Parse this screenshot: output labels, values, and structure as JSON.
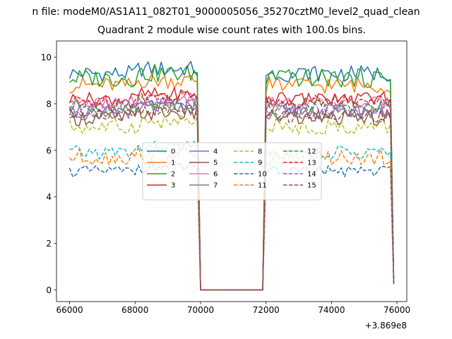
{
  "figure": {
    "suptitle": "n file: modeM0/AS1A11_082T01_9000005056_35270cztM0_level2_quad_clean"
  },
  "chart_data": {
    "type": "line",
    "title": "Quadrant 2 module wise count rates with 100.0s bins.",
    "xlabel": "",
    "ylabel": "",
    "x_offset_label": "+3.869e8",
    "xlim": [
      65600,
      76300
    ],
    "ylim": [
      -0.5,
      10.7
    ],
    "xticks": [
      66000,
      68000,
      70000,
      72000,
      74000,
      76000
    ],
    "xtick_labels": [
      "66000",
      "68000",
      "70000",
      "72000",
      "74000",
      "76000"
    ],
    "yticks": [
      0,
      2,
      4,
      6,
      8,
      10
    ],
    "ytick_labels": [
      "0",
      "2",
      "4",
      "6",
      "8",
      "10"
    ],
    "grid": false,
    "legend_position": "center",
    "legend_columns": 4,
    "x_segments": {
      "start": 66000,
      "step": 100,
      "gap_start": 70000,
      "gap_end": 71900,
      "end": 75900
    },
    "series": [
      {
        "name": "0",
        "color": "#1f77b4",
        "dash": "solid",
        "level": 9.3,
        "amp": 0.35,
        "endval": 0.35
      },
      {
        "name": "1",
        "color": "#ff7f0e",
        "dash": "solid",
        "level": 8.8,
        "amp": 0.35,
        "endval": 0.35
      },
      {
        "name": "2",
        "color": "#2ca02c",
        "dash": "solid",
        "level": 9.1,
        "amp": 0.4,
        "endval": 0.3
      },
      {
        "name": "3",
        "color": "#d62728",
        "dash": "solid",
        "level": 8.2,
        "amp": 0.3,
        "endval": 0.3
      },
      {
        "name": "4",
        "color": "#9467bd",
        "dash": "solid",
        "level": 7.7,
        "amp": 0.35,
        "endval": 0.3
      },
      {
        "name": "5",
        "color": "#8c564b",
        "dash": "solid",
        "level": 7.4,
        "amp": 0.35,
        "endval": 0.25
      },
      {
        "name": "6",
        "color": "#e377c2",
        "dash": "solid",
        "level": 8.0,
        "amp": 0.3,
        "endval": 0.3
      },
      {
        "name": "7",
        "color": "#7f7f7f",
        "dash": "solid",
        "level": 7.6,
        "amp": 0.3,
        "endval": 0.3
      },
      {
        "name": "8",
        "color": "#bcbd22",
        "dash": "dashed",
        "level": 7.0,
        "amp": 0.35,
        "endval": 0.25
      },
      {
        "name": "9",
        "color": "#17becf",
        "dash": "dashed",
        "level": 5.9,
        "amp": 0.3,
        "endval": 0.25
      },
      {
        "name": "10",
        "color": "#1f77b4",
        "dash": "dashed",
        "level": 5.1,
        "amp": 0.25,
        "endval": 0.2
      },
      {
        "name": "11",
        "color": "#ff7f0e",
        "dash": "dashed",
        "level": 5.7,
        "amp": 0.35,
        "endval": 0.25
      },
      {
        "name": "12",
        "color": "#2ca02c",
        "dash": "dashed",
        "level": 7.9,
        "amp": 0.3,
        "endval": 0.3
      },
      {
        "name": "13",
        "color": "#d62728",
        "dash": "dashed",
        "level": 8.1,
        "amp": 0.3,
        "endval": 0.3
      },
      {
        "name": "14",
        "color": "#9467bd",
        "dash": "dashed",
        "level": 7.8,
        "amp": 0.3,
        "endval": 0.3
      },
      {
        "name": "15",
        "color": "#8c564b",
        "dash": "dashed",
        "level": 7.5,
        "amp": 0.3,
        "endval": 0.3
      }
    ]
  }
}
